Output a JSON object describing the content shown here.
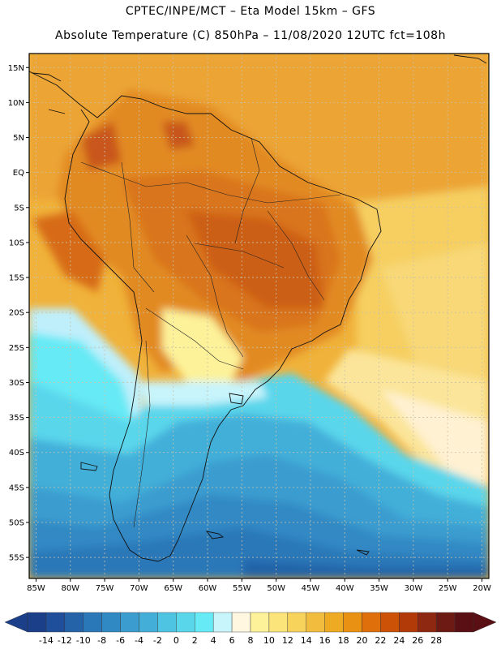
{
  "header": {
    "line1": "CPTEC/INPE/MCT –   Eta Model 15km – GFS",
    "line2": "Absolute Temperature (C) 850hPa – 11/08/2020 12UTC fct=108h"
  },
  "map": {
    "lat_labels": [
      "15N",
      "10N",
      "5N",
      "EQ",
      "5S",
      "10S",
      "15S",
      "20S",
      "25S",
      "30S",
      "35S",
      "40S",
      "45S",
      "50S",
      "55S"
    ],
    "lon_labels": [
      "85W",
      "80W",
      "75W",
      "70W",
      "65W",
      "60W",
      "55W",
      "50W",
      "45W",
      "40W",
      "35W",
      "30W",
      "25W",
      "20W"
    ],
    "lat_values": [
      15,
      10,
      5,
      0,
      -5,
      -10,
      -15,
      -20,
      -25,
      -30,
      -35,
      -40,
      -45,
      -50,
      -55
    ],
    "lon_values": [
      -85,
      -80,
      -75,
      -70,
      -65,
      -60,
      -55,
      -50,
      -45,
      -40,
      -35,
      -30,
      -25,
      -20
    ],
    "extent": {
      "west": -86,
      "east": -19,
      "north": 17,
      "south": -58
    }
  },
  "colorbar": {
    "labels": [
      "-14",
      "-12",
      "-10",
      "-8",
      "-6",
      "-4",
      "-2",
      "0",
      "2",
      "4",
      "6",
      "8",
      "10",
      "12",
      "14",
      "16",
      "18",
      "20",
      "22",
      "24",
      "26",
      "28"
    ],
    "colors": [
      "#1c3f8a",
      "#1f4f9a",
      "#2463a8",
      "#2b78b8",
      "#3189c4",
      "#3a9ccf",
      "#43afd9",
      "#4fc4e2",
      "#5ad6eb",
      "#66eaf5",
      "#c8f4fb",
      "#fff7e0",
      "#fdf29a",
      "#fbe47a",
      "#f7d35c",
      "#f2bd3f",
      "#edaa22",
      "#e89112",
      "#df6f0a",
      "#cc5208",
      "#b13a08",
      "#8f2810",
      "#6e1a14",
      "#5a0f14"
    ],
    "low_arrow_color": "#1c3f8a",
    "high_arrow_color": "#5a0f14"
  }
}
